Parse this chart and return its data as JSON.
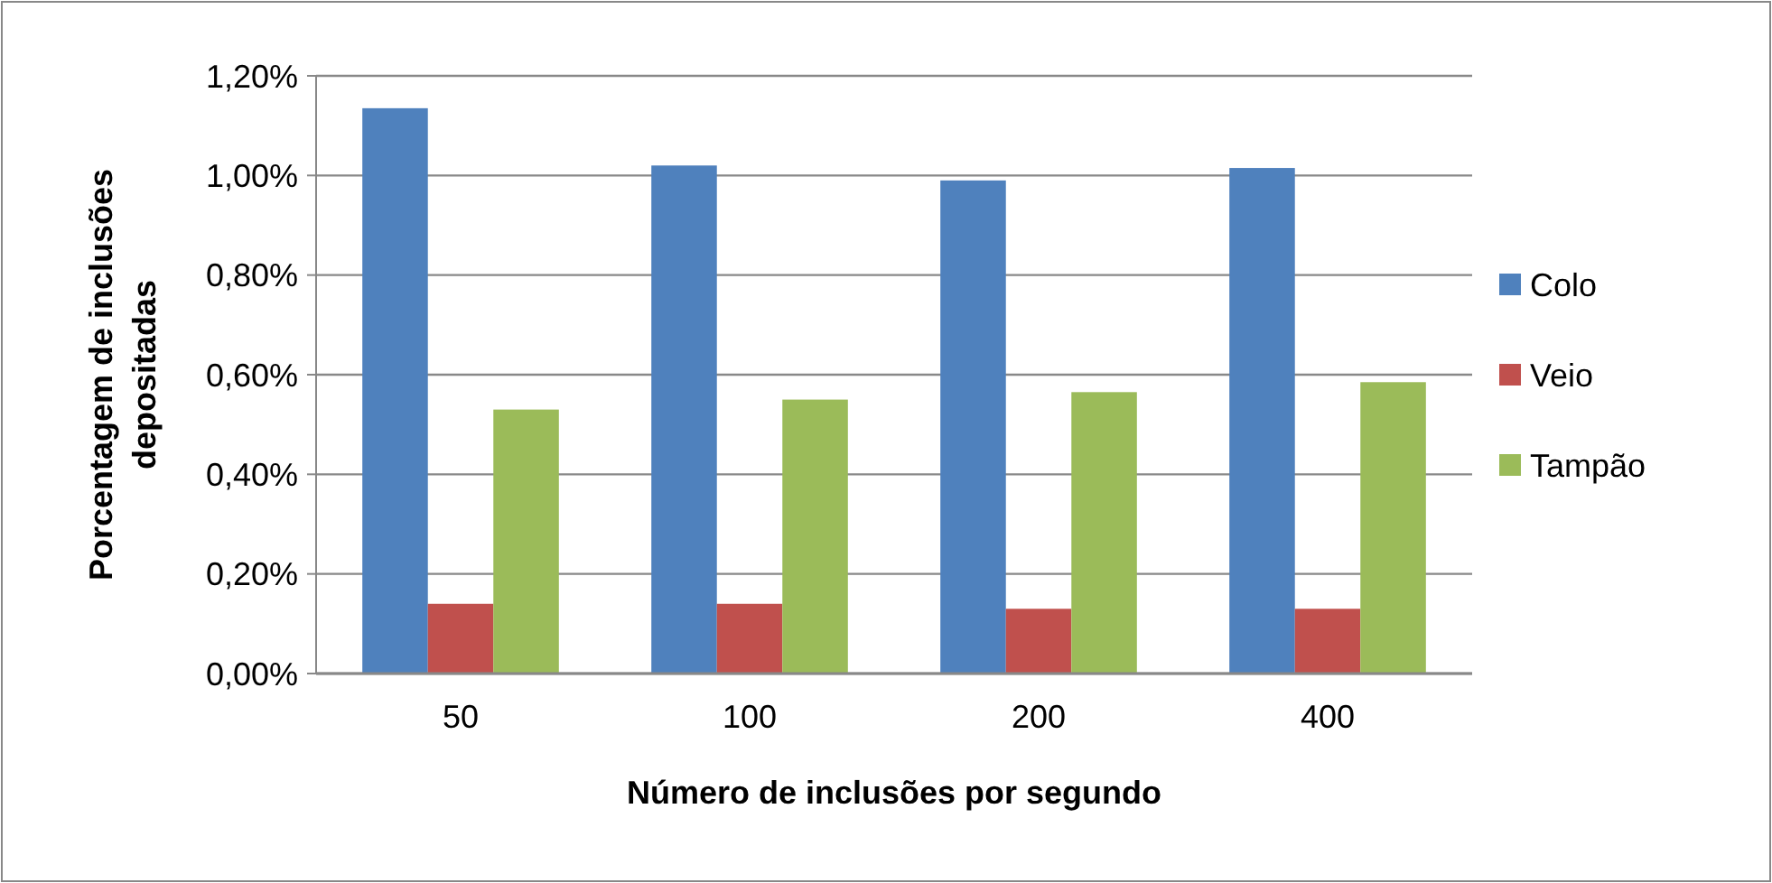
{
  "chart_data": {
    "type": "bar",
    "xlabel": "Número de inclusões por segundo",
    "ylabel": "Porcentagem de inclusões depositadas",
    "categories": [
      "50",
      "100",
      "200",
      "400"
    ],
    "series": [
      {
        "name": "Colo",
        "color": "#4f81bd",
        "values": [
          1.135,
          1.02,
          0.99,
          1.015
        ]
      },
      {
        "name": "Veio",
        "color": "#c0504d",
        "values": [
          0.14,
          0.14,
          0.13,
          0.13
        ]
      },
      {
        "name": "Tampão",
        "color": "#9bbb59",
        "values": [
          0.53,
          0.55,
          0.565,
          0.585
        ]
      }
    ],
    "ylim": [
      0,
      1.2
    ],
    "yticks": [
      {
        "value": 0,
        "label": "0,00%"
      },
      {
        "value": 0.2,
        "label": "0,20%"
      },
      {
        "value": 0.4,
        "label": "0,40%"
      },
      {
        "value": 0.6,
        "label": "0,60%"
      },
      {
        "value": 0.8,
        "label": "0,80%"
      },
      {
        "value": 1,
        "label": "1,00%"
      },
      {
        "value": 1.2,
        "label": "1,20%"
      }
    ],
    "grid": "y",
    "legend": "right"
  }
}
